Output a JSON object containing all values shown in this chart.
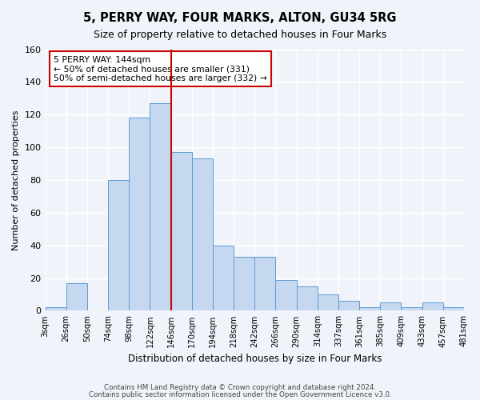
{
  "title": "5, PERRY WAY, FOUR MARKS, ALTON, GU34 5RG",
  "subtitle": "Size of property relative to detached houses in Four Marks",
  "xlabel": "Distribution of detached houses by size in Four Marks",
  "ylabel": "Number of detached properties",
  "bin_labels": [
    "3sqm",
    "26sqm",
    "50sqm",
    "74sqm",
    "98sqm",
    "122sqm",
    "146sqm",
    "170sqm",
    "194sqm",
    "218sqm",
    "242sqm",
    "266sqm",
    "290sqm",
    "314sqm",
    "337sqm",
    "361sqm",
    "385sqm",
    "409sqm",
    "433sqm",
    "457sqm",
    "481sqm"
  ],
  "bar_values": [
    2,
    17,
    0,
    80,
    118,
    127,
    97,
    93,
    40,
    33,
    33,
    19,
    15,
    10,
    6,
    2,
    5,
    2,
    5,
    2
  ],
  "bar_color": "#c5d8f0",
  "bar_edge_color": "#5b9bd5",
  "vline_color": "#cc0000",
  "ylim": [
    0,
    160
  ],
  "yticks": [
    0,
    20,
    40,
    60,
    80,
    100,
    120,
    140,
    160
  ],
  "annotation_title": "5 PERRY WAY: 144sqm",
  "annotation_line1": "← 50% of detached houses are smaller (331)",
  "annotation_line2": "50% of semi-detached houses are larger (332) →",
  "footer1": "Contains HM Land Registry data © Crown copyright and database right 2024.",
  "footer2": "Contains public sector information licensed under the Open Government Licence v3.0.",
  "bg_color": "#f0f4fa",
  "grid_color": "#ffffff"
}
